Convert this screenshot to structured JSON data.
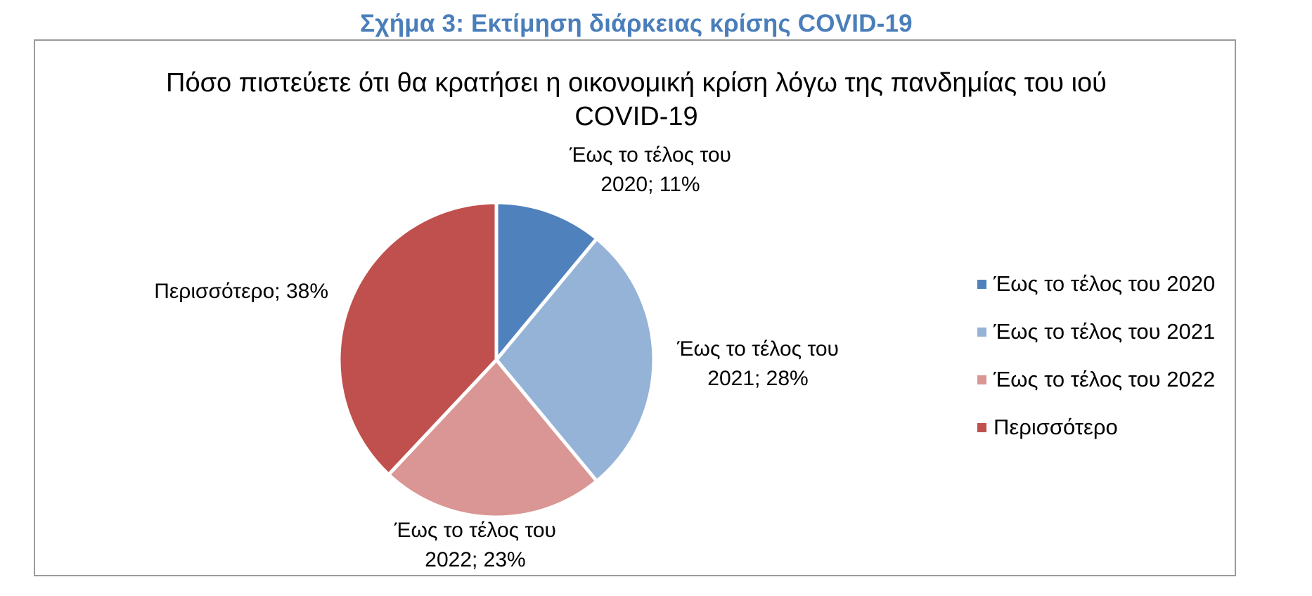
{
  "caption": "Σχήμα 3: Εκτίμηση διάρκειας κρίσης COVID-19",
  "chart_data": {
    "type": "pie",
    "title_lines": [
      "Πόσο πιστεύετε ότι θα κρατήσει η οικονομική κρίση λόγω της πανδημίας του ιού",
      "COVID-19"
    ],
    "legend_position": "right",
    "slices": [
      {
        "name": "Έως το τέλος του 2020",
        "value": 11,
        "label_lines": [
          "Έως το τέλος του",
          "2020; 11%"
        ],
        "color": "#4f81bd"
      },
      {
        "name": "Έως το τέλος του 2021",
        "value": 28,
        "label_lines": [
          "Έως το τέλος του",
          "2021; 28%"
        ],
        "color": "#95b3d7"
      },
      {
        "name": "Έως το τέλος του 2022",
        "value": 23,
        "label_lines": [
          "Έως το τέλος του",
          "2022; 23%"
        ],
        "color": "#d99694"
      },
      {
        "name": "Περισσότερο",
        "value": 38,
        "label_lines": [
          "Περισσότερο; 38%"
        ],
        "color": "#c0504d"
      }
    ]
  }
}
